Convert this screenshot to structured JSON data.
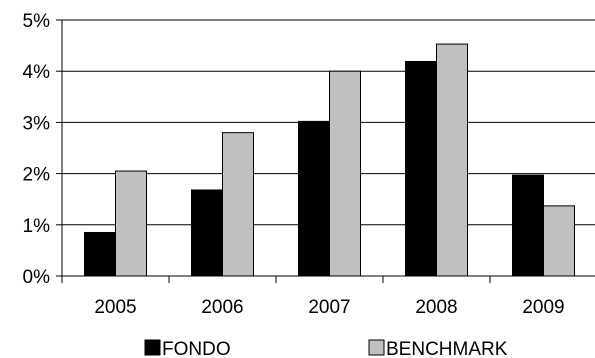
{
  "chart_data": {
    "type": "bar",
    "categories": [
      "2005",
      "2006",
      "2007",
      "2008",
      "2009"
    ],
    "series": [
      {
        "name": "FONDO",
        "values": [
          0.85,
          1.68,
          3.02,
          4.19,
          1.97
        ],
        "color": "#000000"
      },
      {
        "name": "BENCHMARK",
        "values": [
          2.05,
          2.8,
          4.0,
          4.53,
          1.37
        ],
        "color": "#c0c0c0"
      }
    ],
    "ylim": [
      0,
      5
    ],
    "yticks": [
      "0%",
      "1%",
      "2%",
      "3%",
      "4%",
      "5%"
    ],
    "title": "",
    "xlabel": "",
    "ylabel": "",
    "grid": true,
    "legend_position": "bottom"
  }
}
